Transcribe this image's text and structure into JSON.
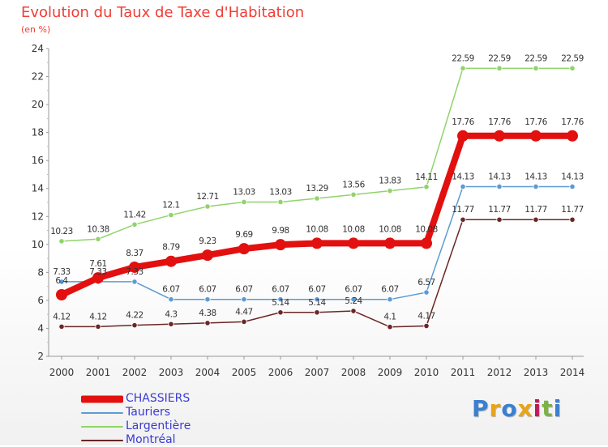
{
  "title": "Evolution du Taux de Taxe d'Habitation",
  "subtitle": "(en %)",
  "logo": {
    "text": "Proxiti",
    "colors": [
      "#3a7fd0",
      "#e8a317",
      "#3a7fd0",
      "#e8a317",
      "#c2185b",
      "#7cb342",
      "#3a7fd0"
    ]
  },
  "chart_data": {
    "type": "line",
    "x": [
      "2000",
      "2001",
      "2002",
      "2003",
      "2004",
      "2005",
      "2006",
      "2007",
      "2008",
      "2009",
      "2010",
      "2011",
      "2012",
      "2013",
      "2014"
    ],
    "ylim": [
      2,
      24
    ],
    "yticks": [
      "2",
      "4",
      "6",
      "8",
      "10",
      "12",
      "14",
      "16",
      "18",
      "20",
      "22",
      "24"
    ],
    "grid": false,
    "legend_position": "bottom-left",
    "series": [
      {
        "name": "CHASSIERS",
        "color": "#e31010",
        "values": [
          6.4,
          7.61,
          8.37,
          8.79,
          9.23,
          9.69,
          9.98,
          10.08,
          10.08,
          10.08,
          10.08,
          17.76,
          17.76,
          17.76,
          17.76
        ],
        "labels": [
          "6.4",
          "7.61",
          "8.37",
          "8.79",
          "9.23",
          "9.69",
          "9.98",
          "10.08",
          "10.08",
          "10.08",
          "10.08",
          "17.76",
          "17.76",
          "17.76",
          "17.76"
        ]
      },
      {
        "name": "Tauriers",
        "color": "#5b9bd5",
        "values": [
          7.33,
          7.33,
          7.33,
          6.07,
          6.07,
          6.07,
          6.07,
          6.07,
          6.07,
          6.07,
          6.57,
          14.13,
          14.13,
          14.13,
          14.13
        ],
        "labels": [
          "7.33",
          "7.33",
          "7.33",
          "6.07",
          "6.07",
          "6.07",
          "6.07",
          "6.07",
          "6.07",
          "6.07",
          "6.57",
          "14.13",
          "14.13",
          "14.13",
          "14.13"
        ]
      },
      {
        "name": "Largentière",
        "color": "#8fd46a",
        "values": [
          10.23,
          10.38,
          11.42,
          12.1,
          12.71,
          13.03,
          13.03,
          13.29,
          13.56,
          13.83,
          14.11,
          22.59,
          22.59,
          22.59,
          22.59
        ],
        "labels": [
          "10.23",
          "10.38",
          "11.42",
          "12.1",
          "12.71",
          "13.03",
          "13.03",
          "13.29",
          "13.56",
          "13.83",
          "14.11",
          "22.59",
          "22.59",
          "22.59",
          "22.59"
        ]
      },
      {
        "name": "Montréal",
        "color": "#6b2626",
        "values": [
          4.12,
          4.12,
          4.22,
          4.3,
          4.38,
          4.47,
          5.14,
          5.14,
          5.24,
          4.1,
          4.17,
          11.77,
          11.77,
          11.77,
          11.77
        ],
        "labels": [
          "4.12",
          "4.12",
          "4.22",
          "4.3",
          "4.38",
          "4.47",
          "5.14",
          "5.14",
          "5.24",
          "4.1",
          "4.17",
          "11.77",
          "11.77",
          "11.77",
          "11.77"
        ]
      }
    ]
  }
}
